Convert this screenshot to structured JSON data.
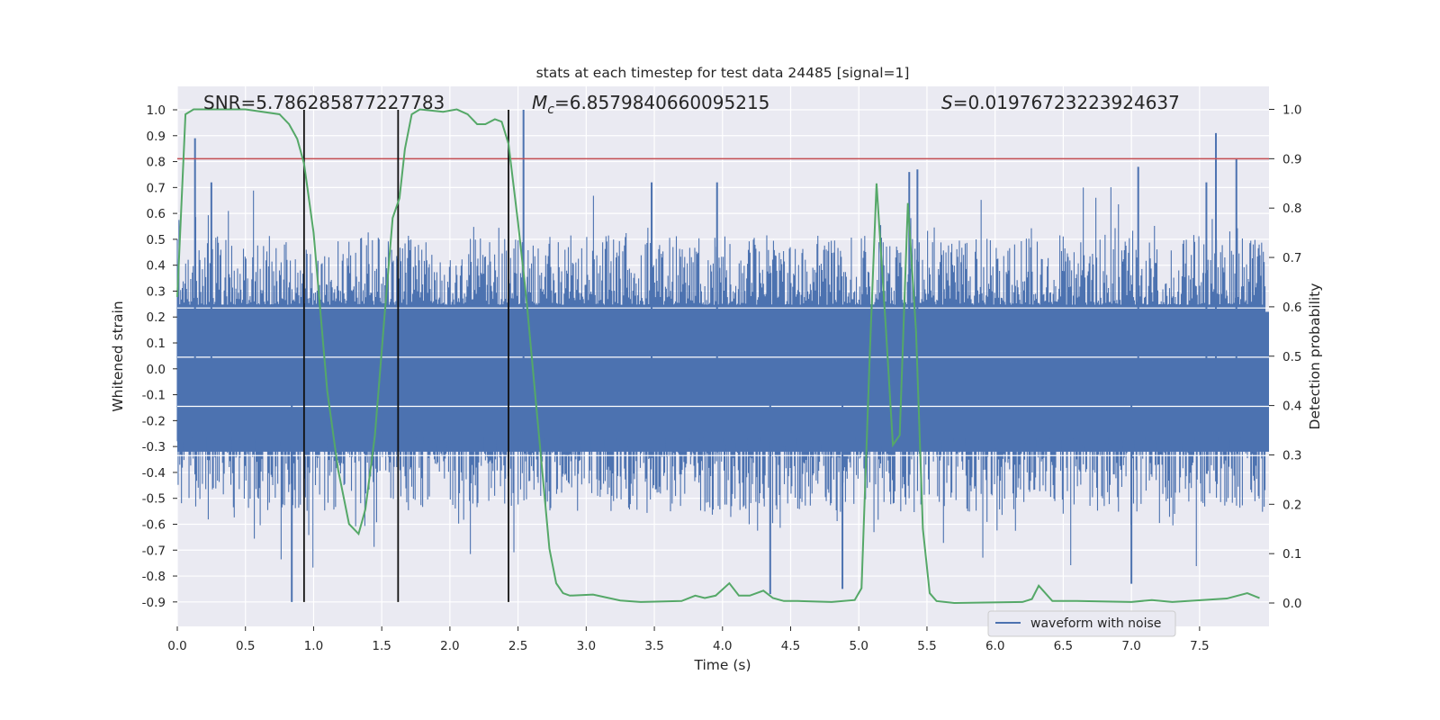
{
  "chart_data": {
    "type": "line",
    "title": "stats at each timestep for test data 24485 [signal=1]",
    "xlabel": "Time (s)",
    "ylabel_left": "Whitened strain",
    "ylabel_right": "Detection probability",
    "xlim": [
      0.0,
      8.0
    ],
    "ylim_left": [
      -1.0,
      1.1
    ],
    "ylim_right": [
      -0.05,
      1.05
    ],
    "x_ticks": [
      "0.0",
      "0.5",
      "1.0",
      "1.5",
      "2.0",
      "2.5",
      "3.0",
      "3.5",
      "4.0",
      "4.5",
      "5.0",
      "5.5",
      "6.0",
      "6.5",
      "7.0",
      "7.5"
    ],
    "y_ticks_left": [
      "1.0",
      "0.9",
      "0.8",
      "0.7",
      "0.6",
      "0.5",
      "0.4",
      "0.3",
      "0.2",
      "0.1",
      "0.0",
      "-0.1",
      "-0.2",
      "-0.3",
      "-0.4",
      "-0.5",
      "-0.6",
      "-0.7",
      "-0.8",
      "-0.9"
    ],
    "y_ticks_right": [
      "1.0",
      "0.9",
      "0.8",
      "0.7",
      "0.6",
      "0.5",
      "0.4",
      "0.3",
      "0.2",
      "0.1",
      "0.0"
    ],
    "annotations": {
      "snr": "SNR=5.786285877227783",
      "mc_symbol": "M",
      "mc_sub": "c",
      "mc_value": "=6.8579840660095215",
      "s_symbol": "S",
      "s_value": "=0.01976723223924637"
    },
    "threshold_right": 0.9,
    "vertical_lines_x": [
      0.93,
      1.62,
      2.43
    ],
    "vertical_lines_ylim_left": [
      -0.9,
      1.0
    ],
    "legend": {
      "position": "lower-right",
      "entries": [
        "waveform with noise"
      ]
    },
    "grid": true,
    "series": [
      {
        "name": "waveform with noise",
        "axis": "left",
        "kind": "noise",
        "envelope_positive_typical": 0.45,
        "envelope_negative_typical": -0.48,
        "peaks": [
          {
            "x": 0.13,
            "y": 0.89
          },
          {
            "x": 0.25,
            "y": 0.72
          },
          {
            "x": 0.84,
            "y": -0.9
          },
          {
            "x": 2.54,
            "y": 1.0
          },
          {
            "x": 3.48,
            "y": 0.72
          },
          {
            "x": 3.96,
            "y": 0.72
          },
          {
            "x": 4.35,
            "y": -0.87
          },
          {
            "x": 4.88,
            "y": -0.85
          },
          {
            "x": 5.37,
            "y": 0.76
          },
          {
            "x": 5.43,
            "y": 0.77
          },
          {
            "x": 7.05,
            "y": 0.78
          },
          {
            "x": 7.55,
            "y": 0.72
          },
          {
            "x": 7.62,
            "y": 0.91
          },
          {
            "x": 7.77,
            "y": 0.81
          },
          {
            "x": 7.0,
            "y": -0.83
          }
        ]
      },
      {
        "name": "detection probability",
        "axis": "right",
        "x": [
          0.0,
          0.06,
          0.12,
          0.5,
          0.75,
          0.82,
          0.88,
          0.93,
          1.0,
          1.1,
          1.18,
          1.26,
          1.33,
          1.38,
          1.45,
          1.52,
          1.58,
          1.63,
          1.67,
          1.72,
          1.78,
          1.95,
          2.05,
          2.13,
          2.2,
          2.26,
          2.33,
          2.38,
          2.43,
          2.5,
          2.56,
          2.62,
          2.68,
          2.73,
          2.78,
          2.83,
          2.88,
          3.05,
          3.25,
          3.4,
          3.7,
          3.8,
          3.87,
          3.95,
          4.05,
          4.12,
          4.2,
          4.3,
          4.37,
          4.45,
          4.55,
          4.8,
          4.97,
          5.02,
          5.08,
          5.13,
          5.2,
          5.25,
          5.3,
          5.36,
          5.42,
          5.47,
          5.52,
          5.57,
          5.7,
          6.2,
          6.27,
          6.32,
          6.42,
          6.5,
          6.6,
          7.0,
          7.15,
          7.3,
          7.7,
          7.85,
          7.94
        ],
        "y": [
          0.62,
          0.99,
          1.0,
          1.0,
          0.99,
          0.97,
          0.94,
          0.89,
          0.75,
          0.43,
          0.27,
          0.16,
          0.14,
          0.19,
          0.34,
          0.58,
          0.78,
          0.82,
          0.92,
          0.99,
          1.0,
          0.995,
          1.0,
          0.99,
          0.97,
          0.97,
          0.98,
          0.975,
          0.93,
          0.77,
          0.62,
          0.44,
          0.26,
          0.11,
          0.04,
          0.02,
          0.015,
          0.017,
          0.005,
          0.002,
          0.004,
          0.015,
          0.01,
          0.015,
          0.04,
          0.015,
          0.015,
          0.025,
          0.01,
          0.004,
          0.004,
          0.002,
          0.006,
          0.03,
          0.5,
          0.85,
          0.55,
          0.32,
          0.34,
          0.81,
          0.55,
          0.15,
          0.02,
          0.004,
          0.0,
          0.002,
          0.008,
          0.035,
          0.004,
          0.004,
          0.004,
          0.002,
          0.006,
          0.002,
          0.009,
          0.02,
          0.01
        ]
      }
    ]
  }
}
